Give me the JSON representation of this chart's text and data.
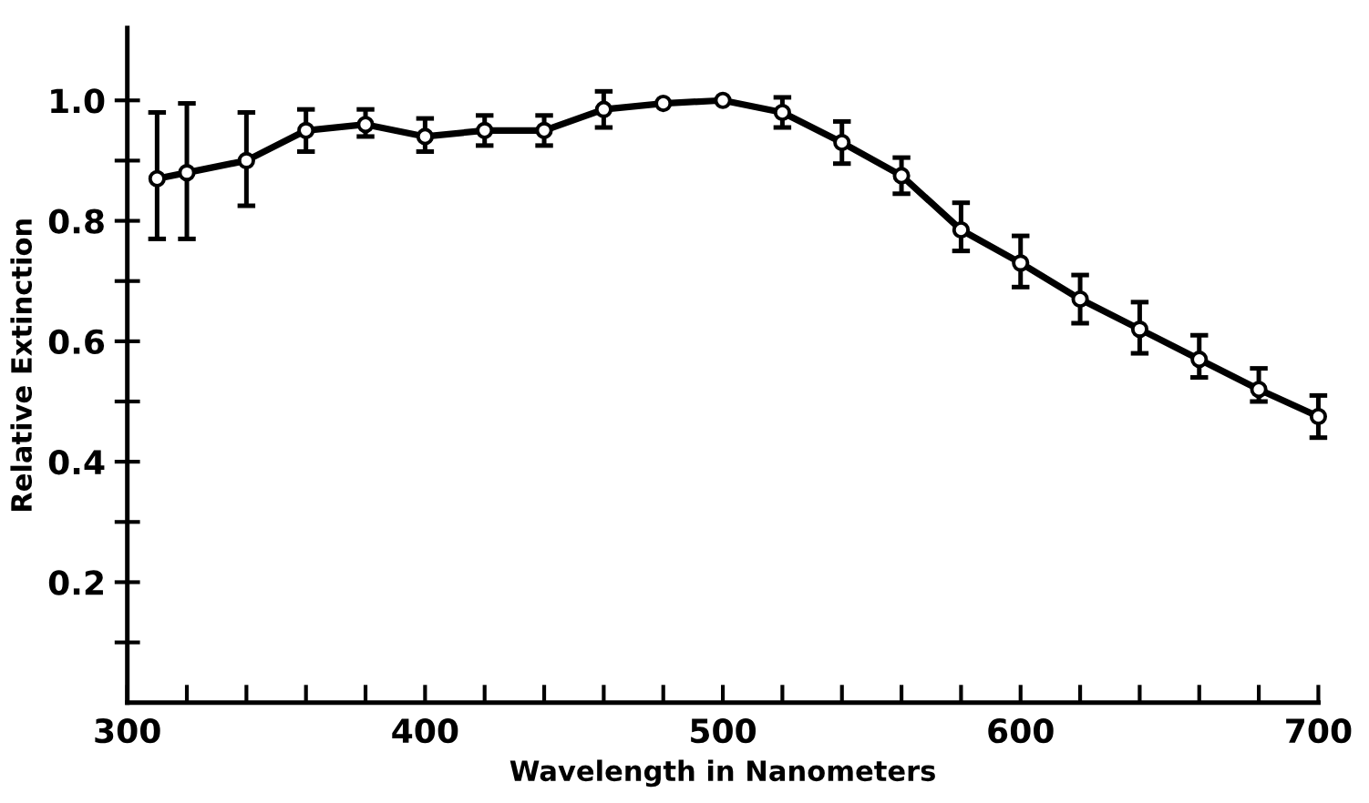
{
  "chart_data": {
    "type": "line",
    "xlabel": "Wavelength in Nanometers",
    "ylabel": "Relative Extinction",
    "x": [
      310,
      320,
      340,
      360,
      380,
      400,
      420,
      440,
      460,
      480,
      500,
      520,
      540,
      560,
      580,
      600,
      620,
      640,
      660,
      680,
      700
    ],
    "series": [
      {
        "color": "#000000",
        "values": [
          0.87,
          0.88,
          0.9,
          0.95,
          0.96,
          0.94,
          0.95,
          0.95,
          0.985,
          0.995,
          1.0,
          0.98,
          0.93,
          0.875,
          0.785,
          0.73,
          0.67,
          0.62,
          0.57,
          0.52,
          0.475
        ],
        "errors": [
          [
            0.77,
            0.98
          ],
          [
            0.77,
            0.995
          ],
          [
            0.825,
            0.98
          ],
          [
            0.915,
            0.985
          ],
          [
            0.94,
            0.985
          ],
          [
            0.915,
            0.97
          ],
          [
            0.925,
            0.975
          ],
          [
            0.925,
            0.975
          ],
          [
            0.955,
            1.015
          ],
          null,
          null,
          [
            0.955,
            1.005
          ],
          [
            0.895,
            0.965
          ],
          [
            0.845,
            0.905
          ],
          [
            0.75,
            0.83
          ],
          [
            0.69,
            0.775
          ],
          [
            0.63,
            0.71
          ],
          [
            0.58,
            0.665
          ],
          [
            0.54,
            0.61
          ],
          [
            0.5,
            0.555
          ],
          [
            0.44,
            0.51
          ]
        ]
      }
    ],
    "marker": "circle",
    "line_style": "solid",
    "grid": false,
    "legend": false,
    "xlim": [
      300,
      700
    ],
    "ylim": [
      0,
      1.12
    ],
    "xticks": [
      300,
      {
        "value": 320,
        "label": null
      },
      {
        "value": 340,
        "label": null
      },
      {
        "value": 360,
        "label": null
      },
      {
        "value": 380,
        "label": null
      },
      400,
      {
        "value": 420,
        "label": null
      },
      {
        "value": 440,
        "label": null
      },
      {
        "value": 460,
        "label": null
      },
      {
        "value": 480,
        "label": null
      },
      500,
      {
        "value": 520,
        "label": null
      },
      {
        "value": 540,
        "label": null
      },
      {
        "value": 560,
        "label": null
      },
      {
        "value": 580,
        "label": null
      },
      600,
      {
        "value": 620,
        "label": null
      },
      {
        "value": 640,
        "label": null
      },
      {
        "value": 660,
        "label": null
      },
      {
        "value": 680,
        "label": null
      },
      700
    ],
    "yticks": [
      {
        "value": 0.1,
        "label": null
      },
      0.2,
      {
        "value": 0.3,
        "label": null
      },
      0.4,
      {
        "value": 0.5,
        "label": null
      },
      0.6,
      {
        "value": 0.7,
        "label": null
      },
      0.8,
      {
        "value": 0.9,
        "label": null
      },
      {
        "value": 1.0,
        "label": "1.0"
      }
    ]
  }
}
